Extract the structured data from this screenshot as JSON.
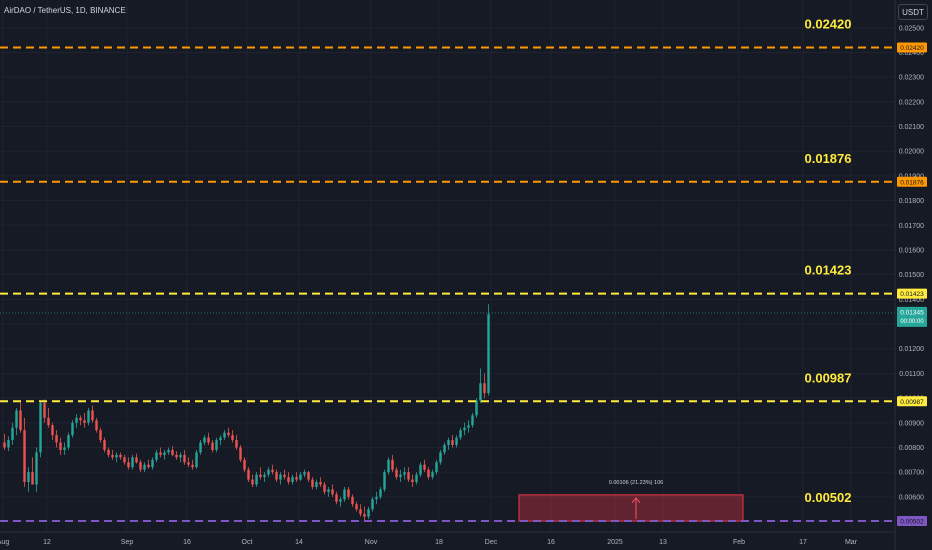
{
  "header": {
    "symbol_line": "AirDAO / TetherUS, 1D, BINANCE",
    "currency_button": "USDT"
  },
  "colors": {
    "background": "#161a25",
    "grid": "#1f2330",
    "up": "#26a69a",
    "down": "#ef5350",
    "orange_level": "#ff9800",
    "yellow_level": "#ffeb3b",
    "purple_level": "#7e57c2",
    "last_price": "#26a69a",
    "range_box": "#f23645"
  },
  "chart_data": {
    "type": "candlestick",
    "symbol": "AirDAO / TetherUS",
    "interval": "1D",
    "exchange": "BINANCE",
    "y_axis": {
      "range": [
        0.0049,
        0.0258
      ],
      "ticks": [
        "0.02500",
        "0.02400",
        "0.02300",
        "0.02200",
        "0.02100",
        "0.02000",
        "0.01900",
        "0.01800",
        "0.01700",
        "0.01600",
        "0.01500",
        "0.01400",
        "0.01300",
        "0.01200",
        "0.01100",
        "0.01000",
        "0.00900",
        "0.00800",
        "0.00700",
        "0.00600",
        "0.00502"
      ]
    },
    "x_axis": {
      "ticks": [
        {
          "label": "Aug",
          "day": 0
        },
        {
          "label": "12",
          "day": 11
        },
        {
          "label": "Sep",
          "day": 31
        },
        {
          "label": "16",
          "day": 46
        },
        {
          "label": "Oct",
          "day": 61
        },
        {
          "label": "14",
          "day": 74
        },
        {
          "label": "Nov",
          "day": 92
        },
        {
          "label": "18",
          "day": 109
        },
        {
          "label": "Dec",
          "day": 122
        },
        {
          "label": "16",
          "day": 137
        },
        {
          "label": "2025",
          "day": 153
        },
        {
          "label": "13",
          "day": 165
        },
        {
          "label": "Feb",
          "day": 184
        },
        {
          "label": "17",
          "day": 200
        },
        {
          "label": "Mar",
          "day": 212
        }
      ]
    },
    "levels": [
      {
        "label": "0.02420",
        "value": 0.0242,
        "color": "#ff9800"
      },
      {
        "label": "0.01876",
        "value": 0.01876,
        "color": "#ff9800"
      },
      {
        "label": "0.01423",
        "value": 0.01423,
        "color": "#ffeb3b"
      },
      {
        "label": "0.00987",
        "value": 0.00987,
        "color": "#ffeb3b"
      },
      {
        "label": "0.00502",
        "value": 0.00502,
        "color": "#7e57c2"
      }
    ],
    "last_price": {
      "label": "0.01345",
      "value": 0.01345,
      "sub_label": "00:00:00"
    },
    "measure_box": {
      "label": "0.00106 (21.23%) 106",
      "start_day": 129,
      "end_day": 185,
      "low": 0.00502,
      "high": 0.00608
    },
    "candles": [
      [
        0.0082,
        0.00855,
        0.0079,
        0.008
      ],
      [
        0.008,
        0.00845,
        0.00785,
        0.0083
      ],
      [
        0.0083,
        0.009,
        0.0081,
        0.0088
      ],
      [
        0.0088,
        0.0096,
        0.0085,
        0.0095
      ],
      [
        0.0095,
        0.00985,
        0.0086,
        0.0087
      ],
      [
        0.0087,
        0.0092,
        0.0064,
        0.0066
      ],
      [
        0.0066,
        0.0072,
        0.0062,
        0.007
      ],
      [
        0.007,
        0.0076,
        0.0065,
        0.0065
      ],
      [
        0.0065,
        0.008,
        0.0062,
        0.0078
      ],
      [
        0.0078,
        0.0099,
        0.0076,
        0.0098
      ],
      [
        0.0098,
        0.00995,
        0.009,
        0.0092
      ],
      [
        0.0092,
        0.0096,
        0.0088,
        0.0089
      ],
      [
        0.0089,
        0.009,
        0.0083,
        0.0085
      ],
      [
        0.0085,
        0.0087,
        0.008,
        0.0082
      ],
      [
        0.0082,
        0.0084,
        0.0077,
        0.0079
      ],
      [
        0.0079,
        0.0082,
        0.0077,
        0.008
      ],
      [
        0.008,
        0.0086,
        0.0079,
        0.0085
      ],
      [
        0.0085,
        0.0091,
        0.0084,
        0.009
      ],
      [
        0.009,
        0.00935,
        0.0088,
        0.0092
      ],
      [
        0.0092,
        0.0093,
        0.0089,
        0.0091
      ],
      [
        0.0091,
        0.0094,
        0.0088,
        0.009
      ],
      [
        0.009,
        0.0096,
        0.0089,
        0.0095
      ],
      [
        0.0095,
        0.0097,
        0.009,
        0.0091
      ],
      [
        0.0091,
        0.0092,
        0.0086,
        0.0087
      ],
      [
        0.0087,
        0.0088,
        0.0082,
        0.0083
      ],
      [
        0.0083,
        0.0084,
        0.0078,
        0.0079
      ],
      [
        0.0079,
        0.008,
        0.0076,
        0.0077
      ],
      [
        0.0077,
        0.0079,
        0.0075,
        0.0076
      ],
      [
        0.0076,
        0.0078,
        0.0074,
        0.0077
      ],
      [
        0.0077,
        0.0078,
        0.0075,
        0.0076
      ],
      [
        0.0076,
        0.0077,
        0.0073,
        0.0074
      ],
      [
        0.0074,
        0.0076,
        0.0071,
        0.0072
      ],
      [
        0.0072,
        0.0077,
        0.0071,
        0.0076
      ],
      [
        0.0076,
        0.00775,
        0.00735,
        0.0074
      ],
      [
        0.0074,
        0.0075,
        0.007,
        0.0071
      ],
      [
        0.0071,
        0.0074,
        0.007,
        0.0073
      ],
      [
        0.0073,
        0.0075,
        0.00715,
        0.0072
      ],
      [
        0.0072,
        0.0076,
        0.0071,
        0.0075
      ],
      [
        0.0075,
        0.0079,
        0.0074,
        0.0078
      ],
      [
        0.0078,
        0.008,
        0.0076,
        0.0077
      ],
      [
        0.0077,
        0.0079,
        0.0075,
        0.0078
      ],
      [
        0.0078,
        0.008,
        0.0077,
        0.0079
      ],
      [
        0.0079,
        0.00805,
        0.00765,
        0.0077
      ],
      [
        0.0077,
        0.00785,
        0.0075,
        0.0076
      ],
      [
        0.0076,
        0.0078,
        0.0074,
        0.0077
      ],
      [
        0.0077,
        0.0079,
        0.0073,
        0.0074
      ],
      [
        0.0074,
        0.0076,
        0.0072,
        0.0073
      ],
      [
        0.0073,
        0.0075,
        0.0071,
        0.0072
      ],
      [
        0.0072,
        0.0079,
        0.00715,
        0.0078
      ],
      [
        0.0078,
        0.0083,
        0.0077,
        0.0082
      ],
      [
        0.0082,
        0.0085,
        0.0081,
        0.0084
      ],
      [
        0.0084,
        0.0086,
        0.0081,
        0.0082
      ],
      [
        0.0082,
        0.0083,
        0.0078,
        0.0079
      ],
      [
        0.0079,
        0.0084,
        0.0078,
        0.0083
      ],
      [
        0.0083,
        0.0085,
        0.0081,
        0.0084
      ],
      [
        0.0084,
        0.0087,
        0.0083,
        0.0086
      ],
      [
        0.0086,
        0.0088,
        0.0084,
        0.0085
      ],
      [
        0.0085,
        0.0087,
        0.0082,
        0.0083
      ],
      [
        0.0083,
        0.0085,
        0.0079,
        0.008
      ],
      [
        0.008,
        0.0081,
        0.0074,
        0.0075
      ],
      [
        0.0075,
        0.0076,
        0.007,
        0.0071
      ],
      [
        0.0071,
        0.0072,
        0.0066,
        0.0067
      ],
      [
        0.0067,
        0.0069,
        0.0064,
        0.0065
      ],
      [
        0.0065,
        0.007,
        0.0064,
        0.0069
      ],
      [
        0.0069,
        0.0072,
        0.0067,
        0.0068
      ],
      [
        0.0068,
        0.007,
        0.0066,
        0.0069
      ],
      [
        0.0069,
        0.0072,
        0.0068,
        0.0071
      ],
      [
        0.0071,
        0.0073,
        0.0069,
        0.007
      ],
      [
        0.007,
        0.0071,
        0.0066,
        0.0067
      ],
      [
        0.0067,
        0.007,
        0.0065,
        0.0069
      ],
      [
        0.0069,
        0.0071,
        0.0067,
        0.0068
      ],
      [
        0.0068,
        0.007,
        0.0065,
        0.0066
      ],
      [
        0.0066,
        0.0069,
        0.0065,
        0.0068
      ],
      [
        0.0068,
        0.007,
        0.0066,
        0.0067
      ],
      [
        0.0067,
        0.007,
        0.00665,
        0.0069
      ],
      [
        0.0069,
        0.0071,
        0.0068,
        0.007
      ],
      [
        0.007,
        0.00705,
        0.0066,
        0.0067
      ],
      [
        0.0067,
        0.0068,
        0.0063,
        0.0064
      ],
      [
        0.0064,
        0.0067,
        0.0063,
        0.0066
      ],
      [
        0.0066,
        0.0068,
        0.0064,
        0.0065
      ],
      [
        0.0065,
        0.0066,
        0.0061,
        0.0062
      ],
      [
        0.0062,
        0.0064,
        0.006,
        0.0063
      ],
      [
        0.0063,
        0.0065,
        0.006,
        0.0061
      ],
      [
        0.0061,
        0.0062,
        0.0057,
        0.0058
      ],
      [
        0.0058,
        0.006,
        0.0056,
        0.0059
      ],
      [
        0.0059,
        0.0064,
        0.0058,
        0.0063
      ],
      [
        0.0063,
        0.0064,
        0.0059,
        0.006
      ],
      [
        0.006,
        0.0061,
        0.0056,
        0.0057
      ],
      [
        0.0057,
        0.0058,
        0.0054,
        0.0055
      ],
      [
        0.0055,
        0.0057,
        0.0052,
        0.0053
      ],
      [
        0.0053,
        0.0056,
        0.005,
        0.0052
      ],
      [
        0.0052,
        0.0056,
        0.0051,
        0.0055
      ],
      [
        0.0055,
        0.006,
        0.0054,
        0.0059
      ],
      [
        0.0059,
        0.0062,
        0.0057,
        0.006
      ],
      [
        0.006,
        0.0064,
        0.0059,
        0.0063
      ],
      [
        0.0063,
        0.0071,
        0.0062,
        0.007
      ],
      [
        0.007,
        0.0076,
        0.0069,
        0.0075
      ],
      [
        0.0075,
        0.0077,
        0.007,
        0.0071
      ],
      [
        0.0071,
        0.0072,
        0.0067,
        0.0068
      ],
      [
        0.0068,
        0.0071,
        0.0066,
        0.0069
      ],
      [
        0.0069,
        0.0072,
        0.0067,
        0.007
      ],
      [
        0.007,
        0.0072,
        0.0066,
        0.0067
      ],
      [
        0.0067,
        0.0069,
        0.0064,
        0.0066
      ],
      [
        0.0066,
        0.007,
        0.0065,
        0.0069
      ],
      [
        0.0069,
        0.0074,
        0.0068,
        0.0073
      ],
      [
        0.0073,
        0.0075,
        0.007,
        0.0071
      ],
      [
        0.0071,
        0.0072,
        0.0067,
        0.0068
      ],
      [
        0.0068,
        0.0071,
        0.0067,
        0.007
      ],
      [
        0.007,
        0.0075,
        0.0069,
        0.0074
      ],
      [
        0.0074,
        0.0079,
        0.0073,
        0.0078
      ],
      [
        0.0078,
        0.0082,
        0.0077,
        0.0081
      ],
      [
        0.0081,
        0.0084,
        0.0079,
        0.0083
      ],
      [
        0.0083,
        0.0085,
        0.008,
        0.0081
      ],
      [
        0.0081,
        0.0085,
        0.008,
        0.0084
      ],
      [
        0.0084,
        0.0088,
        0.0083,
        0.0087
      ],
      [
        0.0087,
        0.009,
        0.0085,
        0.0088
      ],
      [
        0.0088,
        0.0091,
        0.0086,
        0.0089
      ],
      [
        0.0089,
        0.0094,
        0.0088,
        0.0093
      ],
      [
        0.0093,
        0.01,
        0.0092,
        0.0099
      ],
      [
        0.0099,
        0.0112,
        0.0098,
        0.0106
      ],
      [
        0.0106,
        0.011,
        0.01,
        0.0102
      ],
      [
        0.0102,
        0.0138,
        0.0101,
        0.0134
      ]
    ]
  }
}
